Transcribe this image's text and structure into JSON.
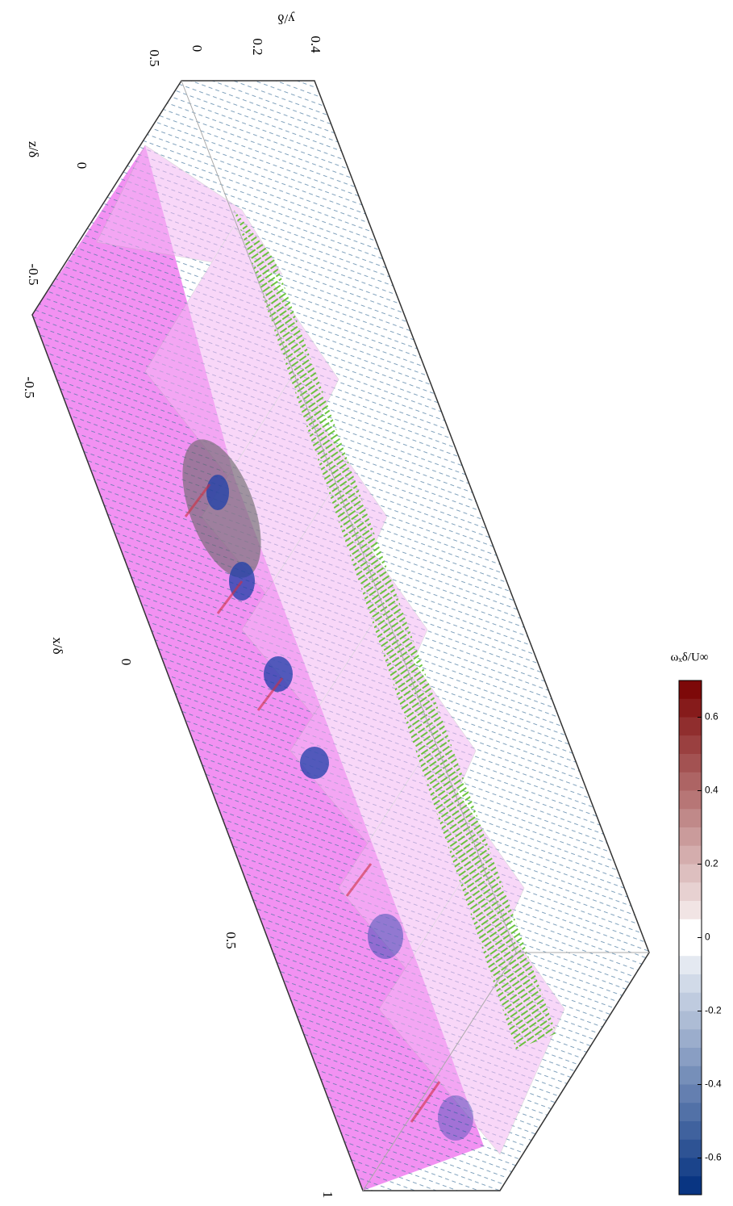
{
  "axes": {
    "y": {
      "label": "y/δ",
      "ticks": [
        "0.5",
        "0",
        "0.2",
        "0.4"
      ]
    },
    "z": {
      "label": "z/δ",
      "ticks": [
        "0",
        "-0.5"
      ]
    },
    "x": {
      "label": "x/δ",
      "ticks": [
        "-0.5",
        "0",
        "0.5",
        "1"
      ]
    }
  },
  "colorbar": {
    "label": "ωₓδ/U∞",
    "lim": [
      -0.7,
      0.7
    ],
    "ticks": [
      0.6,
      0.4,
      0.2,
      0,
      -0.2,
      -0.4,
      -0.6
    ]
  }
}
